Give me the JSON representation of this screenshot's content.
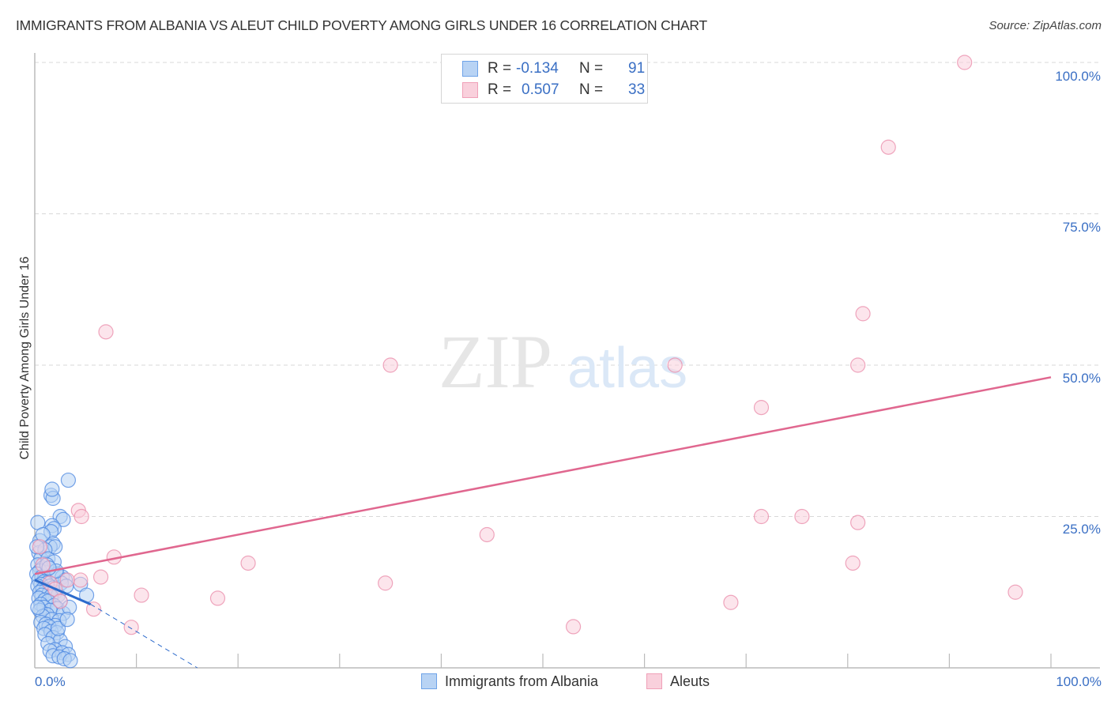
{
  "header": {
    "title": "IMMIGRANTS FROM ALBANIA VS ALEUT CHILD POVERTY AMONG GIRLS UNDER 16 CORRELATION CHART",
    "source": "Source: ZipAtlas.com"
  },
  "legend": {
    "rows": [
      {
        "r_label": "R =",
        "r_value": "-0.134",
        "n_label": "N =",
        "n_value": "91",
        "color": "#6fa3e8"
      },
      {
        "r_label": "R =",
        "r_value": "0.507",
        "n_label": "N =",
        "n_value": "33",
        "color": "#f0a0b8"
      }
    ]
  },
  "axes": {
    "ylabel": "Child Poverty Among Girls Under 16",
    "y_ticks": [
      "100.0%",
      "75.0%",
      "50.0%",
      "25.0%"
    ],
    "x_ticks": [
      "0.0%",
      "100.0%"
    ]
  },
  "bottom_legend": {
    "items": [
      {
        "label": "Immigrants from Albania",
        "color": "#6fa3e8"
      },
      {
        "label": "Aleuts",
        "color": "#f0a0b8"
      }
    ]
  },
  "watermark": {
    "zip": "ZIP",
    "atlas": "atlas"
  },
  "colors": {
    "blue_fill": "#b8d3f4",
    "blue_stroke": "#4a86e0",
    "blue_line": "#2d6bcc",
    "pink_fill": "#f9d0dc",
    "pink_stroke": "#e98aa8",
    "pink_line": "#e0678f",
    "tick_text": "#3a6fc4"
  },
  "chart_data": {
    "type": "scatter",
    "title": "IMMIGRANTS FROM ALBANIA VS ALEUT CHILD POVERTY AMONG GIRLS UNDER 16 CORRELATION CHART",
    "xlabel": "Immigrants from Albania (%)",
    "ylabel": "Child Poverty Among Girls Under 16",
    "xlim": [
      0,
      100
    ],
    "ylim": [
      0,
      100
    ],
    "grid": true,
    "legend_position": "top-center",
    "series": [
      {
        "name": "Immigrants from Albania",
        "r": -0.134,
        "n": 91,
        "trend": {
          "x": [
            0,
            5.5
          ],
          "y": [
            14.5,
            10.5
          ],
          "extended_dashed_to": [
            16,
            0
          ]
        },
        "points": [
          [
            0.3,
            24
          ],
          [
            0.5,
            21
          ],
          [
            0.4,
            19
          ],
          [
            0.6,
            18
          ],
          [
            0.3,
            17
          ],
          [
            0.8,
            16.5
          ],
          [
            0.5,
            16
          ],
          [
            0.2,
            15.5
          ],
          [
            0.7,
            15
          ],
          [
            1.0,
            15
          ],
          [
            0.4,
            14.5
          ],
          [
            0.9,
            14.2
          ],
          [
            1.2,
            14
          ],
          [
            0.6,
            13.8
          ],
          [
            1.5,
            13.5
          ],
          [
            0.3,
            13.5
          ],
          [
            1.8,
            13.2
          ],
          [
            0.8,
            13
          ],
          [
            1.1,
            12.8
          ],
          [
            2.0,
            12.5
          ],
          [
            0.5,
            12.5
          ],
          [
            1.4,
            12.3
          ],
          [
            2.3,
            12
          ],
          [
            0.7,
            12
          ],
          [
            1.6,
            11.8
          ],
          [
            0.4,
            11.5
          ],
          [
            1.0,
            11.2
          ],
          [
            2.5,
            11
          ],
          [
            1.3,
            11
          ],
          [
            0.6,
            10.5
          ],
          [
            1.9,
            10.3
          ],
          [
            0.9,
            10
          ],
          [
            2.2,
            9.8
          ],
          [
            1.5,
            9.5
          ],
          [
            0.5,
            9.5
          ],
          [
            2.8,
            9
          ],
          [
            1.2,
            8.8
          ],
          [
            0.8,
            8.5
          ],
          [
            1.7,
            8
          ],
          [
            2.4,
            7.8
          ],
          [
            0.6,
            7.5
          ],
          [
            1.1,
            7.2
          ],
          [
            2.0,
            7
          ],
          [
            1.4,
            6.8
          ],
          [
            0.9,
            6.5
          ],
          [
            1.6,
            6
          ],
          [
            2.2,
            5.8
          ],
          [
            1.0,
            5.5
          ],
          [
            1.8,
            5
          ],
          [
            2.5,
            4.5
          ],
          [
            1.3,
            4
          ],
          [
            3.0,
            3.5
          ],
          [
            2.0,
            3
          ],
          [
            1.5,
            2.8
          ],
          [
            2.7,
            2.5
          ],
          [
            3.3,
            2.2
          ],
          [
            1.8,
            2
          ],
          [
            2.4,
            1.8
          ],
          [
            2.9,
            1.5
          ],
          [
            3.5,
            1.2
          ],
          [
            1.6,
            28.5
          ],
          [
            1.8,
            28
          ],
          [
            1.7,
            29.5
          ],
          [
            3.3,
            31
          ],
          [
            2.5,
            25
          ],
          [
            2.8,
            24.5
          ],
          [
            1.7,
            23.5
          ],
          [
            1.9,
            23
          ],
          [
            1.6,
            22.5
          ],
          [
            0.8,
            22
          ],
          [
            1.8,
            20.5
          ],
          [
            1.5,
            20
          ],
          [
            2.0,
            20
          ],
          [
            1.0,
            19.5
          ],
          [
            1.3,
            18
          ],
          [
            1.9,
            17.5
          ],
          [
            1.2,
            17
          ],
          [
            2.2,
            15.5
          ],
          [
            2.7,
            15
          ],
          [
            3.0,
            14.5
          ],
          [
            2.6,
            14
          ],
          [
            3.1,
            13.5
          ],
          [
            4.5,
            13.8
          ],
          [
            5.1,
            12
          ],
          [
            3.4,
            10
          ],
          [
            2.1,
            16
          ],
          [
            1.4,
            16.5
          ],
          [
            0.2,
            20
          ],
          [
            0.3,
            10
          ],
          [
            2.3,
            6.5
          ],
          [
            3.2,
            8
          ]
        ]
      },
      {
        "name": "Aleuts",
        "r": 0.507,
        "n": 33,
        "trend": {
          "x": [
            0,
            100
          ],
          "y": [
            15.5,
            48
          ]
        },
        "points": [
          [
            91.5,
            100
          ],
          [
            84,
            86
          ],
          [
            81.5,
            58.5
          ],
          [
            81,
            50
          ],
          [
            63,
            50
          ],
          [
            35,
            50
          ],
          [
            7,
            55.5
          ],
          [
            71.5,
            43
          ],
          [
            71.5,
            25
          ],
          [
            75.5,
            25
          ],
          [
            81,
            24
          ],
          [
            44.5,
            22
          ],
          [
            4.3,
            26
          ],
          [
            4.6,
            25
          ],
          [
            7.8,
            18.3
          ],
          [
            21,
            17.3
          ],
          [
            80.5,
            17.3
          ],
          [
            6.5,
            15
          ],
          [
            4.5,
            14.5
          ],
          [
            34.5,
            14
          ],
          [
            3.2,
            14.5
          ],
          [
            1.5,
            14
          ],
          [
            2,
            13
          ],
          [
            10.5,
            12
          ],
          [
            18,
            11.5
          ],
          [
            96.5,
            12.5
          ],
          [
            68.5,
            10.8
          ],
          [
            5.8,
            9.7
          ],
          [
            0.5,
            20
          ],
          [
            0.8,
            17
          ],
          [
            9.5,
            6.7
          ],
          [
            53,
            6.8
          ],
          [
            2.5,
            11
          ]
        ]
      }
    ]
  }
}
